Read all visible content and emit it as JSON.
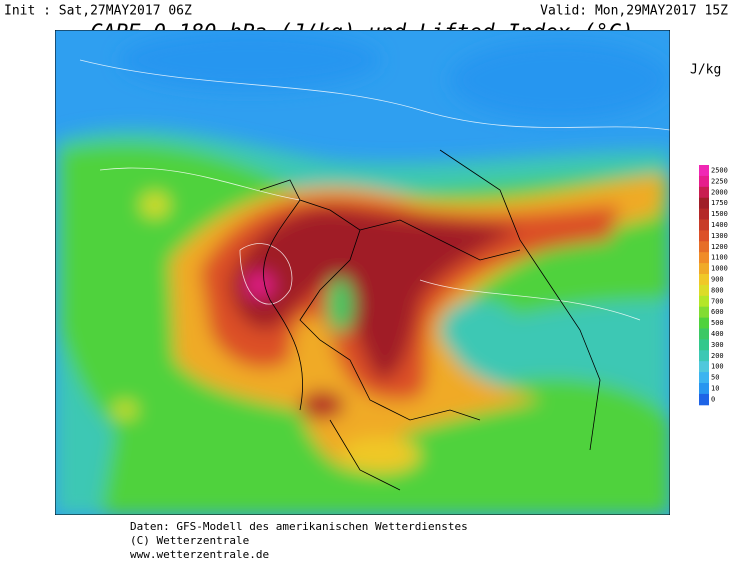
{
  "header": {
    "init": "Init : Sat,27MAY2017 06Z",
    "valid": "Valid: Mon,29MAY2017 15Z",
    "title": "CAPE 0-180 hPa (J/kg) und Lifted Index (°C)"
  },
  "legend": {
    "unit": "J/kg",
    "labels": [
      "2500",
      "2250",
      "2000",
      "1750",
      "1500",
      "1400",
      "1300",
      "1200",
      "1100",
      "1000",
      "900",
      "800",
      "700",
      "600",
      "500",
      "400",
      "300",
      "200",
      "100",
      "50",
      "10",
      "0"
    ],
    "colors": [
      "#f028b4",
      "#e61e8c",
      "#c81e50",
      "#a01e28",
      "#b42828",
      "#c83c28",
      "#dc5028",
      "#e66e28",
      "#f08c28",
      "#f0aa28",
      "#f0c828",
      "#dcdc28",
      "#b4e628",
      "#82dc32",
      "#50d23c",
      "#3cc864",
      "#32c88c",
      "#3cc8b4",
      "#50c8dc",
      "#3cb4f0",
      "#2896f0",
      "#1e64e6"
    ]
  },
  "footer": {
    "lines": [
      "Daten: GFS-Modell des amerikanischen Wetterdienstes",
      "(C) Wetterzentrale",
      "www.wetterzentrale.de"
    ]
  }
}
